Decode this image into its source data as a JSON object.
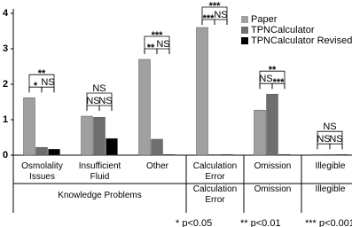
{
  "chart_data": {
    "type": "bar",
    "categories": [
      "Osmolality Issues",
      "Insufficient Fluid",
      "Other",
      "Calculation Error",
      "Omission",
      "Illegible"
    ],
    "groups": [
      {
        "label": "Knowledge Problems",
        "span": 3
      },
      {
        "label": "Calculation Error",
        "span": 1
      },
      {
        "label": "Omission",
        "span": 1
      },
      {
        "label": "Illegible",
        "span": 1
      }
    ],
    "series": [
      {
        "name": "Paper",
        "color": "#a0a0a0",
        "values": [
          1.62,
          1.1,
          2.7,
          3.6,
          1.27,
          0.02
        ]
      },
      {
        "name": "TPNCalculator",
        "color": "#6e6e6e",
        "values": [
          0.22,
          1.07,
          0.45,
          0.02,
          1.72,
          0.02
        ]
      },
      {
        "name": "TPNCalculator Revised",
        "color": "#000000",
        "values": [
          0.17,
          0.47,
          0.02,
          0.02,
          0.02,
          0.02
        ]
      }
    ],
    "significance": [
      {
        "outer": "**",
        "left": "*",
        "right": "NS"
      },
      {
        "outer": "NS",
        "left": "NS",
        "right": "NS"
      },
      {
        "outer": "***",
        "left": "**",
        "right": "NS"
      },
      {
        "outer": "***",
        "left": "***",
        "right": "NS"
      },
      {
        "outer": "**",
        "left": "NS",
        "right": "***"
      },
      {
        "outer": "NS",
        "left": "NS",
        "right": "NS"
      }
    ],
    "footnotes": [
      "* p<0.05",
      "** p<0.01",
      "*** p<0.001"
    ],
    "ylim": [
      0,
      4
    ],
    "yticks": [
      0,
      1,
      2,
      3,
      4
    ],
    "legend": "top-right"
  }
}
